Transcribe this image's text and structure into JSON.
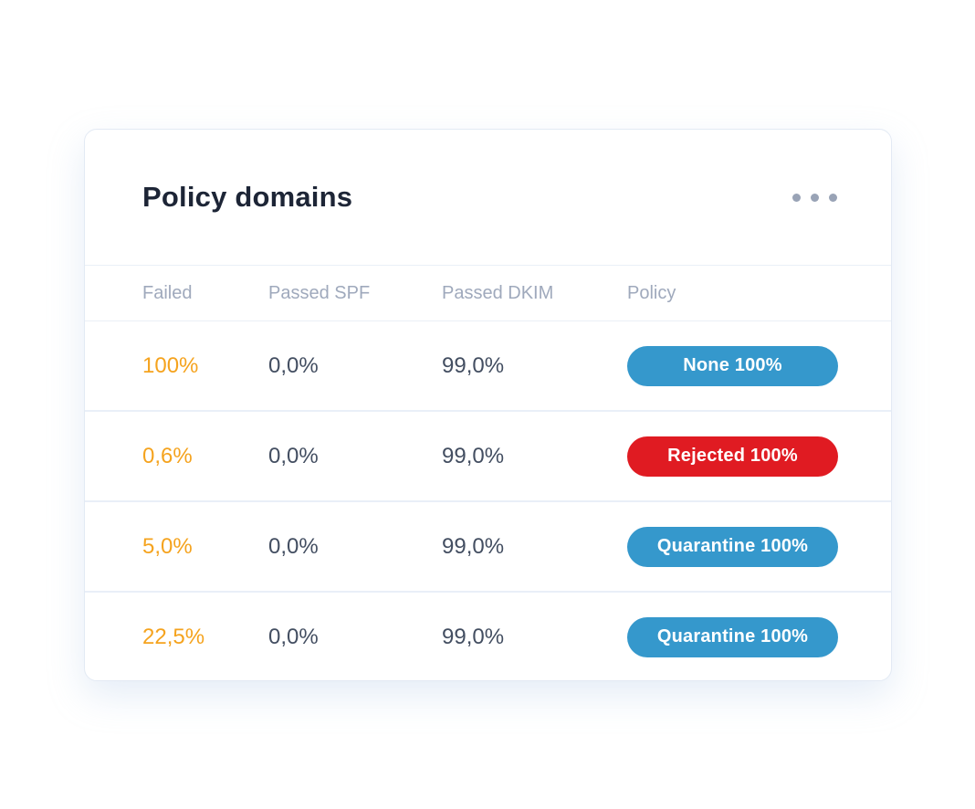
{
  "card": {
    "title": "Policy domains",
    "menu_icon": "ellipsis-icon",
    "table": {
      "columns": [
        "Failed",
        "Passed SPF",
        "Passed DKIM",
        "Policy"
      ],
      "rows": [
        {
          "failed": "100%",
          "passed_spf": "0,0%",
          "passed_dkim": "99,0%",
          "policy": {
            "label": "None 100%",
            "variant": "blue"
          }
        },
        {
          "failed": "0,6%",
          "passed_spf": "0,0%",
          "passed_dkim": "99,0%",
          "policy": {
            "label": "Rejected 100%",
            "variant": "red"
          }
        },
        {
          "failed": "5,0%",
          "passed_spf": "0,0%",
          "passed_dkim": "99,0%",
          "policy": {
            "label": "Quarantine 100%",
            "variant": "blue"
          }
        },
        {
          "failed": "22,5%",
          "passed_spf": "0,0%",
          "passed_dkim": "99,0%",
          "policy": {
            "label": "Quarantine 100%",
            "variant": "blue"
          }
        }
      ]
    }
  },
  "colors": {
    "failed_accent": "#f5a31e",
    "value_text": "#434e61",
    "column_header_text": "#9fa9bc",
    "title_text": "#1d2536",
    "badge_blue": "#3598cc",
    "badge_red": "#e01b22",
    "card_border": "#e3eaf4",
    "row_separator": "#e9eff8"
  }
}
